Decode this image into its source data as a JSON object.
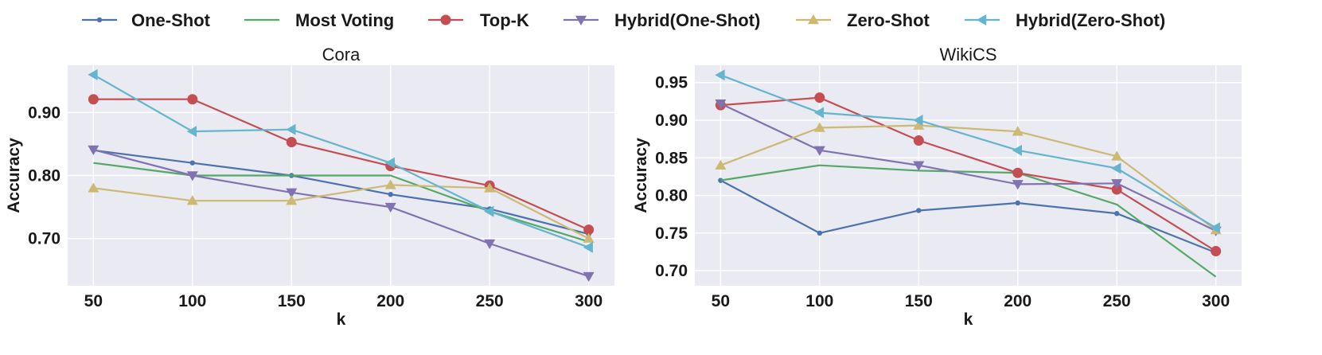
{
  "chart_data": [
    {
      "type": "line",
      "title": "Cora",
      "xlabel": "k",
      "ylabel": "Accuracy",
      "x": [
        50,
        100,
        150,
        200,
        250,
        300
      ],
      "xticks": [
        "50",
        "100",
        "150",
        "200",
        "250",
        "300"
      ],
      "yticks": [
        "0.70",
        "0.80",
        "0.90"
      ],
      "ytick_values": [
        0.7,
        0.8,
        0.9
      ],
      "xlim": [
        37,
        313
      ],
      "ylim": [
        0.625,
        0.975
      ],
      "grid": true,
      "series": [
        {
          "name": "One-Shot",
          "color": "#4C72B0",
          "marker": "point",
          "values": [
            0.84,
            0.82,
            0.8,
            0.77,
            0.747,
            0.707
          ]
        },
        {
          "name": "Most Voting",
          "color": "#55A868",
          "marker": "none",
          "values": [
            0.82,
            0.8,
            0.8,
            0.8,
            0.743,
            0.695
          ]
        },
        {
          "name": "Top-K",
          "color": "#C44E52",
          "marker": "circle",
          "values": [
            0.921,
            0.921,
            0.853,
            0.815,
            0.784,
            0.714
          ]
        },
        {
          "name": "Hybrid(One-Shot)",
          "color": "#8172B2",
          "marker": "triangle-down",
          "values": [
            0.841,
            0.8,
            0.773,
            0.75,
            0.692,
            0.64
          ]
        },
        {
          "name": "Zero-Shot",
          "color": "#CCB974",
          "marker": "triangle-up",
          "values": [
            0.78,
            0.76,
            0.76,
            0.785,
            0.78,
            0.7
          ]
        },
        {
          "name": "Hybrid(Zero-Shot)",
          "color": "#64B5CD",
          "marker": "triangle-left",
          "values": [
            0.96,
            0.87,
            0.873,
            0.82,
            0.743,
            0.686
          ]
        }
      ]
    },
    {
      "type": "line",
      "title": "WikiCS",
      "xlabel": "k",
      "ylabel": "Accuracy",
      "x": [
        50,
        100,
        150,
        200,
        250,
        300
      ],
      "xticks": [
        "50",
        "100",
        "150",
        "200",
        "250",
        "300"
      ],
      "yticks": [
        "0.70",
        "0.75",
        "0.80",
        "0.85",
        "0.90",
        "0.95"
      ],
      "ytick_values": [
        0.7,
        0.75,
        0.8,
        0.85,
        0.9,
        0.95
      ],
      "xlim": [
        37,
        313
      ],
      "ylim": [
        0.68,
        0.973
      ],
      "grid": true,
      "series": [
        {
          "name": "One-Shot",
          "color": "#4C72B0",
          "marker": "point",
          "values": [
            0.82,
            0.75,
            0.78,
            0.79,
            0.776,
            0.724
          ]
        },
        {
          "name": "Most Voting",
          "color": "#55A868",
          "marker": "none",
          "values": [
            0.82,
            0.84,
            0.833,
            0.83,
            0.788,
            0.692
          ]
        },
        {
          "name": "Top-K",
          "color": "#C44E52",
          "marker": "circle",
          "values": [
            0.92,
            0.93,
            0.873,
            0.83,
            0.808,
            0.726
          ]
        },
        {
          "name": "Hybrid(One-Shot)",
          "color": "#8172B2",
          "marker": "triangle-down",
          "values": [
            0.922,
            0.86,
            0.84,
            0.815,
            0.816,
            0.753
          ]
        },
        {
          "name": "Zero-Shot",
          "color": "#CCB974",
          "marker": "triangle-up",
          "values": [
            0.84,
            0.89,
            0.893,
            0.885,
            0.852,
            0.754
          ]
        },
        {
          "name": "Hybrid(Zero-Shot)",
          "color": "#64B5CD",
          "marker": "triangle-left",
          "values": [
            0.96,
            0.91,
            0.9,
            0.86,
            0.836,
            0.757
          ]
        }
      ]
    }
  ],
  "legend": {
    "placement": "top",
    "items": [
      {
        "label": "One-Shot",
        "color": "#4C72B0",
        "marker": "point"
      },
      {
        "label": "Most Voting",
        "color": "#55A868",
        "marker": "none"
      },
      {
        "label": "Top-K",
        "color": "#C44E52",
        "marker": "circle"
      },
      {
        "label": "Hybrid(One-Shot)",
        "color": "#8172B2",
        "marker": "triangle-down"
      },
      {
        "label": "Zero-Shot",
        "color": "#CCB974",
        "marker": "triangle-up"
      },
      {
        "label": "Hybrid(Zero-Shot)",
        "color": "#64B5CD",
        "marker": "triangle-left"
      }
    ]
  },
  "style": {
    "plot_background": "#EAEAF2",
    "grid_color": "#FFFFFF"
  }
}
